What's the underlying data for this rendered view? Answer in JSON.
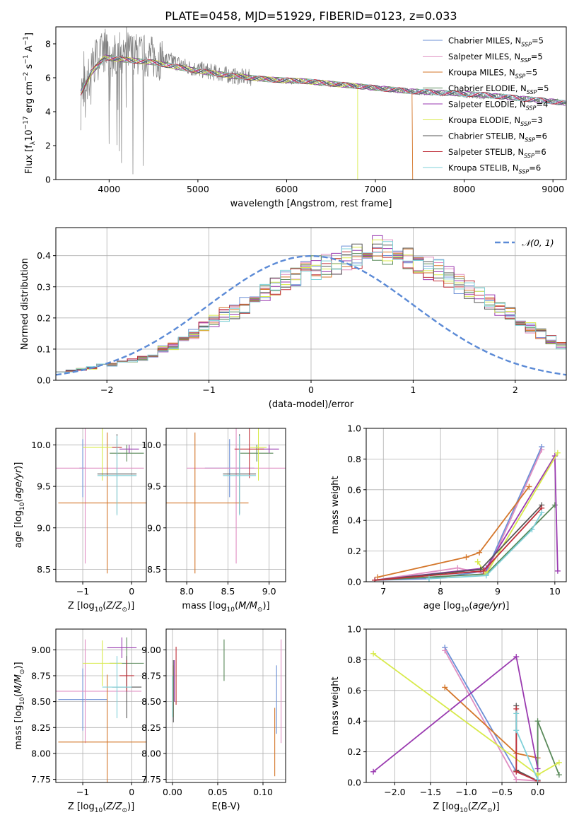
{
  "figure_title": "PLATE=0458, MJD=51929, FIBERID=0123, z=0.033",
  "colors": {
    "Chabrier MILES": "#6b8fd6",
    "Salpeter MILES": "#e08fc2",
    "Kroupa MILES": "#d4762a",
    "Chabrier ELODIE": "#5a8a5a",
    "Salpeter ELODIE": "#9a3ab0",
    "Kroupa ELODIE": "#d8ea4a",
    "Chabrier STELIB": "#555555",
    "Salpeter STELIB": "#c0303a",
    "Kroupa STELIB": "#7fd0d8",
    "data": "#808080",
    "gaussian": "#5b8ad6",
    "grid": "#b0b0b0"
  },
  "chart_data": [
    {
      "id": "spectrum",
      "type": "line",
      "title": "PLATE=0458, MJD=51929, FIBERID=0123, z=0.033",
      "xlabel": "wavelength [Angstrom, rest frame]",
      "ylabel": "Flux [f_λ 10^-17 erg cm^-2 s^-1 A^-1]",
      "xlim": [
        3400,
        9150
      ],
      "ylim": [
        0,
        9
      ],
      "xticks": [
        4000,
        5000,
        6000,
        7000,
        8000,
        9000
      ],
      "yticks": [
        0,
        2,
        4,
        6,
        8
      ],
      "grid": false,
      "legend_position": "top-right",
      "legend": [
        {
          "name": "Chabrier MILES",
          "label": "Chabrier MILES, N",
          "nssp": "=5"
        },
        {
          "name": "Salpeter MILES",
          "label": "Salpeter MILES, N",
          "nssp": "=5"
        },
        {
          "name": "Kroupa MILES",
          "label": "Kroupa MILES, N",
          "nssp": "=5"
        },
        {
          "name": "Chabrier ELODIE",
          "label": "Chabrier ELODIE, N",
          "nssp": "=5"
        },
        {
          "name": "Salpeter ELODIE",
          "label": "Salpeter ELODIE, N",
          "nssp": "=4"
        },
        {
          "name": "Kroupa ELODIE",
          "label": "Kroupa ELODIE, N",
          "nssp": "=3"
        },
        {
          "name": "Chabrier STELIB",
          "label": "Chabrier STELIB, N",
          "nssp": "=6"
        },
        {
          "name": "Salpeter STELIB",
          "label": "Salpeter STELIB, N",
          "nssp": "=6"
        },
        {
          "name": "Kroupa STELIB",
          "label": "Kroupa STELIB, N",
          "nssp": "=6"
        }
      ],
      "legend_subscript": "SSP",
      "data_series": {
        "name": "data",
        "x": [
          3680,
          3750,
          3800,
          3850,
          3900,
          3950,
          4000,
          4050,
          4100,
          4200,
          4300,
          4400,
          4500,
          4600,
          4700,
          4800,
          4900,
          5000,
          5200,
          5400,
          5600,
          5800,
          6000,
          6200,
          6400,
          6600,
          6800,
          7000,
          7200,
          7400,
          7600,
          7800,
          8000,
          8200,
          8400,
          8600,
          8800,
          9000,
          9150
        ],
        "y": [
          5.2,
          5.8,
          6.5,
          7.0,
          7.3,
          7.6,
          7.5,
          7.2,
          7.6,
          7.5,
          7.4,
          7.3,
          7.2,
          7.1,
          7.0,
          6.8,
          6.6,
          6.5,
          6.3,
          6.1,
          6.0,
          5.9,
          5.8,
          5.8,
          5.7,
          5.6,
          5.5,
          5.4,
          5.3,
          5.2,
          5.1,
          5.1,
          5.0,
          4.9,
          4.9,
          4.8,
          4.7,
          4.6,
          4.5
        ]
      },
      "model_continuum": {
        "x": [
          3680,
          3800,
          3950,
          4100,
          4300,
          4500,
          4800,
          5000,
          5400,
          5800,
          6200,
          6600,
          7000,
          7400,
          7800,
          8200,
          8600,
          9000,
          9150
        ],
        "y": [
          5.1,
          6.3,
          7.2,
          7.1,
          7.0,
          6.9,
          6.6,
          6.4,
          6.1,
          5.9,
          5.8,
          5.6,
          5.4,
          5.2,
          5.1,
          5.0,
          4.8,
          4.6,
          4.5
        ]
      },
      "model_cutoffs": {
        "Kroupa ELODIE": 6800,
        "Kroupa MILES": 7420
      }
    },
    {
      "id": "residual_hist",
      "type": "line",
      "xlabel": "(data-model)/error",
      "ylabel": "Normed distribution",
      "xlim": [
        -2.5,
        2.5
      ],
      "ylim": [
        0,
        0.49
      ],
      "xticks": [
        -2,
        -1,
        0,
        1,
        2
      ],
      "yticks": [
        0.0,
        0.1,
        0.2,
        0.3,
        0.4
      ],
      "grid": true,
      "legend_position": "top-right",
      "legend": [
        {
          "name": "N(0,1)",
          "label": "𝒩(0, 1)"
        }
      ],
      "bin_width": 0.1,
      "histogram_envelope": [
        0.03,
        0.03,
        0.035,
        0.04,
        0.05,
        0.05,
        0.06,
        0.065,
        0.07,
        0.08,
        0.1,
        0.11,
        0.13,
        0.15,
        0.17,
        0.19,
        0.21,
        0.22,
        0.24,
        0.26,
        0.28,
        0.3,
        0.32,
        0.33,
        0.35,
        0.36,
        0.37,
        0.38,
        0.39,
        0.4,
        0.41,
        0.42,
        0.41,
        0.4,
        0.39,
        0.38,
        0.36,
        0.35,
        0.33,
        0.31,
        0.29,
        0.27,
        0.25,
        0.23,
        0.21,
        0.19,
        0.17,
        0.15,
        0.13,
        0.11,
        0.1,
        0.085,
        0.07,
        0.06,
        0.05,
        0.045,
        0.04,
        0.035,
        0.03,
        0.03
      ]
    },
    {
      "id": "age_vs_Z",
      "type": "scatter",
      "xlabel": "Z [log10(Z/Z☉)]",
      "ylabel": "age [log10(age/yr)]",
      "xlim": [
        -1.55,
        0.3
      ],
      "ylim": [
        8.35,
        10.2
      ],
      "xticks": [
        -1,
        0
      ],
      "yticks": [
        8.5,
        9.0,
        9.5,
        10.0
      ],
      "grid": true,
      "points": [
        {
          "series": "Chabrier MILES",
          "x": -1.0,
          "xerr": 0.07,
          "y": 9.72,
          "yerr": 0.35
        },
        {
          "series": "Salpeter MILES",
          "x": -0.95,
          "xerr": 1.2,
          "y": 9.72,
          "yerr": 1.15
        },
        {
          "series": "Kroupa MILES",
          "x": -0.5,
          "xerr": 1.0,
          "y": 9.3,
          "yerr": 0.85
        },
        {
          "series": "Chabrier ELODIE",
          "x": -0.1,
          "xerr": 0.35,
          "y": 9.9,
          "yerr": 0.1
        },
        {
          "series": "Salpeter ELODIE",
          "x": -0.05,
          "xerr": 0.2,
          "y": 9.95,
          "yerr": 0.05
        },
        {
          "series": "Kroupa ELODIE",
          "x": -0.6,
          "xerr": 0.4,
          "y": 9.97,
          "yerr": 0.4
        },
        {
          "series": "Chabrier STELIB",
          "x": -0.3,
          "xerr": 0.4,
          "y": 9.65,
          "yerr": 0.48
        },
        {
          "series": "Salpeter STELIB",
          "x": -0.3,
          "xerr": 0.1,
          "y": 9.97,
          "yerr": 0.1
        },
        {
          "series": "Kroupa STELIB",
          "x": -0.3,
          "xerr": 0.4,
          "y": 9.63,
          "yerr": 0.48
        }
      ]
    },
    {
      "id": "age_vs_mass",
      "type": "scatter",
      "xlabel": "mass [log10(M/M☉)]",
      "ylabel": "",
      "xlim": [
        7.75,
        9.2
      ],
      "ylim": [
        8.35,
        10.2
      ],
      "xticks": [
        8.0,
        8.5,
        9.0
      ],
      "yticks": [
        8.5,
        9.0,
        9.5,
        10.0
      ],
      "grid": true,
      "points": [
        {
          "series": "Chabrier MILES",
          "x": 8.52,
          "xerr": 0.3,
          "y": 9.72,
          "yerr": 0.35
        },
        {
          "series": "Salpeter MILES",
          "x": 8.6,
          "xerr": 0.6,
          "y": 9.72,
          "yerr": 1.15
        },
        {
          "series": "Kroupa MILES",
          "x": 8.1,
          "xerr": 0.65,
          "y": 9.3,
          "yerr": 0.85
        },
        {
          "series": "Chabrier ELODIE",
          "x": 8.85,
          "xerr": 0.2,
          "y": 9.9,
          "yerr": 0.1
        },
        {
          "series": "Salpeter ELODIE",
          "x": 9.0,
          "xerr": 0.12,
          "y": 9.95,
          "yerr": 0.05
        },
        {
          "series": "Kroupa ELODIE",
          "x": 8.87,
          "xerr": 0.1,
          "y": 9.97,
          "yerr": 0.4
        },
        {
          "series": "Chabrier STELIB",
          "x": 8.64,
          "xerr": 0.2,
          "y": 9.65,
          "yerr": 0.48
        },
        {
          "series": "Salpeter STELIB",
          "x": 8.76,
          "xerr": 0.18,
          "y": 9.95,
          "yerr": 0.35
        },
        {
          "series": "Kroupa STELIB",
          "x": 8.64,
          "xerr": 0.2,
          "y": 9.63,
          "yerr": 0.48
        }
      ]
    },
    {
      "id": "weight_vs_age",
      "type": "line",
      "xlabel": "age [log10(age/yr)]",
      "ylabel": "mass weight",
      "xlim": [
        6.7,
        10.2
      ],
      "ylim": [
        0,
        1.0
      ],
      "xticks": [
        7,
        8,
        9,
        10
      ],
      "yticks": [
        0.0,
        0.2,
        0.4,
        0.6,
        0.8,
        1.0
      ],
      "grid": true,
      "series": [
        {
          "name": "Chabrier MILES",
          "x": [
            6.85,
            7.8,
            8.8,
            9.77
          ],
          "y": [
            0.01,
            0.02,
            0.07,
            0.88
          ]
        },
        {
          "name": "Salpeter MILES",
          "x": [
            6.85,
            8.3,
            8.8,
            9.77
          ],
          "y": [
            0.01,
            0.09,
            0.05,
            0.86
          ]
        },
        {
          "name": "Kroupa MILES",
          "x": [
            6.9,
            8.45,
            8.68,
            9.55
          ],
          "y": [
            0.03,
            0.16,
            0.19,
            0.62
          ]
        },
        {
          "name": "Chabrier ELODIE",
          "x": [
            6.85,
            8.8,
            10.0
          ],
          "y": [
            0.01,
            0.05,
            0.5
          ]
        },
        {
          "name": "Salpeter ELODIE",
          "x": [
            6.85,
            8.8,
            10.0,
            10.05
          ],
          "y": [
            0.01,
            0.09,
            0.82,
            0.07
          ]
        },
        {
          "name": "Kroupa ELODIE",
          "x": [
            8.65,
            8.8,
            10.05
          ],
          "y": [
            0.13,
            0.05,
            0.84
          ]
        },
        {
          "name": "Chabrier STELIB",
          "x": [
            6.85,
            8.7,
            9.77
          ],
          "y": [
            0.01,
            0.08,
            0.5
          ]
        },
        {
          "name": "Salpeter STELIB",
          "x": [
            6.85,
            8.75,
            9.77
          ],
          "y": [
            0.01,
            0.07,
            0.48
          ]
        },
        {
          "name": "Kroupa STELIB",
          "x": [
            7.8,
            8.8,
            9.6,
            9.77
          ],
          "y": [
            0.02,
            0.04,
            0.34,
            0.45
          ]
        }
      ]
    },
    {
      "id": "mass_vs_Z",
      "type": "scatter",
      "xlabel": "Z [log10(Z/Z☉)]",
      "ylabel": "mass [log10(M/M☉)]",
      "xlim": [
        -1.55,
        0.3
      ],
      "ylim": [
        7.72,
        9.2
      ],
      "xticks": [
        -1,
        0
      ],
      "yticks": [
        7.75,
        8.0,
        8.25,
        8.5,
        8.75,
        9.0
      ],
      "grid": true,
      "points": [
        {
          "series": "Chabrier MILES",
          "x": -1.0,
          "xerr": 0.5,
          "y": 8.52,
          "yerr": 0.3
        },
        {
          "series": "Salpeter MILES",
          "x": -0.95,
          "xerr": 1.15,
          "y": 8.6,
          "yerr": 0.5
        },
        {
          "series": "Kroupa MILES",
          "x": -0.5,
          "xerr": 1.0,
          "y": 8.11,
          "yerr": 0.65
        },
        {
          "series": "Chabrier ELODIE",
          "x": -0.1,
          "xerr": 0.35,
          "y": 8.87,
          "yerr": 0.25
        },
        {
          "series": "Salpeter ELODIE",
          "x": -0.2,
          "xerr": 0.3,
          "y": 9.02,
          "yerr": 0.1
        },
        {
          "series": "Kroupa ELODIE",
          "x": -0.6,
          "xerr": 0.4,
          "y": 8.87,
          "yerr": 0.22
        },
        {
          "series": "Chabrier STELIB",
          "x": -0.1,
          "xerr": 0.3,
          "y": 8.64,
          "yerr": 0.3
        },
        {
          "series": "Salpeter STELIB",
          "x": -0.1,
          "xerr": 0.15,
          "y": 8.75,
          "yerr": 0.15
        },
        {
          "series": "Kroupa STELIB",
          "x": -0.3,
          "xerr": 0.3,
          "y": 8.64,
          "yerr": 0.3
        }
      ]
    },
    {
      "id": "mass_vs_EBV",
      "type": "scatter",
      "xlabel": "E(B-V)",
      "ylabel": "",
      "xlim": [
        -0.007,
        0.125
      ],
      "ylim": [
        7.72,
        9.2
      ],
      "xticks": [
        0.0,
        0.05,
        0.1
      ],
      "yticks": [
        7.75,
        8.0,
        8.25,
        8.5,
        8.75,
        9.0
      ],
      "grid": true,
      "points": [
        {
          "series": "Chabrier MILES",
          "x": 0.115,
          "y": 8.52,
          "yerr": 0.33
        },
        {
          "series": "Salpeter MILES",
          "x": 0.12,
          "y": 8.6,
          "yerr": 0.5
        },
        {
          "series": "Kroupa MILES",
          "x": 0.113,
          "y": 8.11,
          "yerr": 0.33
        },
        {
          "series": "Chabrier ELODIE",
          "x": 0.057,
          "y": 8.9,
          "yerr": 0.2
        },
        {
          "series": "Salpeter ELODIE",
          "x": 0.002,
          "y": 8.7,
          "yerr": 0.2
        },
        {
          "series": "Kroupa ELODIE",
          "x": 0.001,
          "y": 8.6,
          "yerr": 0.25
        },
        {
          "series": "Chabrier STELIB",
          "x": 0.001,
          "y": 8.6,
          "yerr": 0.3
        },
        {
          "series": "Salpeter STELIB",
          "x": 0.004,
          "y": 8.75,
          "yerr": 0.28
        },
        {
          "series": "Kroupa STELIB",
          "x": 0.0,
          "y": 8.55,
          "yerr": 0.2
        }
      ]
    },
    {
      "id": "weight_vs_Z",
      "type": "line",
      "xlabel": "Z [log10(Z/Z☉)]",
      "ylabel": "mass weight",
      "xlim": [
        -2.4,
        0.4
      ],
      "ylim": [
        0,
        1.0
      ],
      "xticks": [
        -2.0,
        -1.5,
        -1.0,
        -0.5,
        0.0
      ],
      "yticks": [
        0.0,
        0.2,
        0.4,
        0.6,
        0.8,
        1.0
      ],
      "grid": true,
      "series": [
        {
          "name": "Chabrier MILES",
          "x": [
            -1.3,
            -0.3,
            0.0
          ],
          "y": [
            0.88,
            0.07,
            0.01
          ]
        },
        {
          "name": "Salpeter MILES",
          "x": [
            -1.3,
            -0.3,
            0.0
          ],
          "y": [
            0.86,
            0.02,
            0.01
          ]
        },
        {
          "name": "Kroupa MILES",
          "x": [
            -1.3,
            -0.3,
            0.0
          ],
          "y": [
            0.62,
            0.19,
            0.16
          ]
        },
        {
          "name": "Chabrier ELODIE",
          "x": [
            0.0,
            0.0,
            0.3
          ],
          "y": [
            0.01,
            0.4,
            0.05
          ]
        },
        {
          "name": "Salpeter ELODIE",
          "x": [
            -2.3,
            -0.3,
            0.0
          ],
          "y": [
            0.07,
            0.82,
            0.09
          ]
        },
        {
          "name": "Kroupa ELODIE",
          "x": [
            -2.3,
            0.0,
            0.3
          ],
          "y": [
            0.84,
            0.05,
            0.13
          ]
        },
        {
          "name": "Chabrier STELIB",
          "x": [
            -0.3,
            -0.3,
            0.0
          ],
          "y": [
            0.5,
            0.08,
            0.01
          ]
        },
        {
          "name": "Salpeter STELIB",
          "x": [
            -0.3,
            -0.3,
            0.0
          ],
          "y": [
            0.48,
            0.07,
            0.01
          ]
        },
        {
          "name": "Kroupa STELIB",
          "x": [
            -0.3,
            -0.3,
            0.0
          ],
          "y": [
            0.45,
            0.34,
            0.02
          ]
        }
      ]
    }
  ]
}
